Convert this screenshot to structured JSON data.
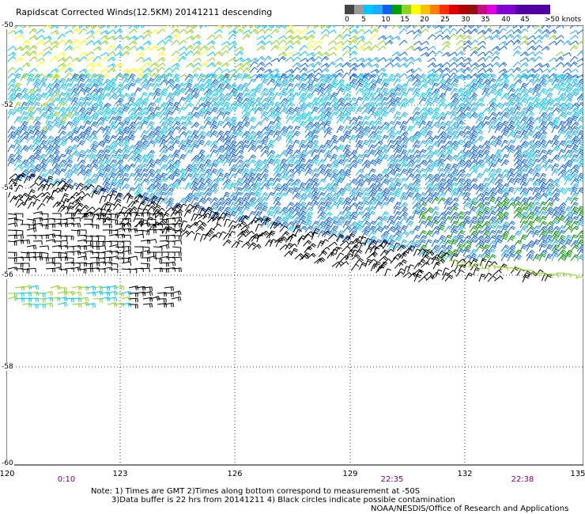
{
  "title": "Rapidscat Corrected Winds(12.5KM) 20141211 descending",
  "color_scale": {
    "labels": [
      "0",
      "5",
      "10",
      "15",
      "20",
      "25",
      "30",
      "35",
      "40",
      "45",
      ">50 knots"
    ],
    "colors": [
      "#444444",
      "#9a9a9a",
      "#00c8ff",
      "#22a8ff",
      "#1060f0",
      "#00a000",
      "#90d020",
      "#ffff00",
      "#ffc000",
      "#ff8000",
      "#ff3000",
      "#e00000",
      "#b00000",
      "#901010",
      "#c01080",
      "#e000e0",
      "#8000d0",
      "#5000a0"
    ]
  },
  "axes": {
    "x_labels": [
      "120",
      "123",
      "126",
      "129",
      "132",
      "135"
    ],
    "y_labels": [
      "-50",
      "-52",
      "-54",
      "-56",
      "-58",
      "-60"
    ]
  },
  "times": [
    "0:10",
    "22:35",
    "22:38"
  ],
  "notes": [
    "Note: 1) Times are GMT 2)Times along bottom correspond to measurement at -50S",
    "3)Data buffer is 22 hrs from 20141211 4) Black circles indicate possible contamination",
    "NOAA/NESDIS/Office of Research and Applications"
  ],
  "wind_colors": {
    "rain_flagged": "#000000",
    "calm": "#ffff00",
    "light": "#90d020",
    "moderate": "#00c8ff",
    "fresh": "#22a8ff",
    "strong": "#1060f0",
    "gale": "#009000"
  }
}
